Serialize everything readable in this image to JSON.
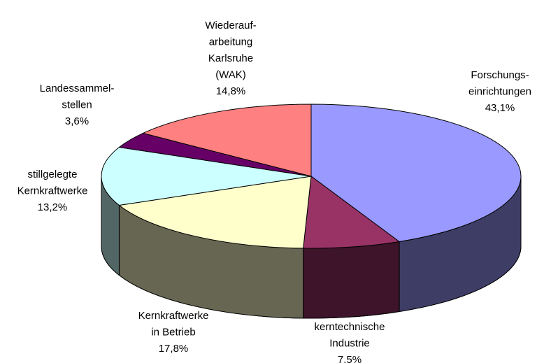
{
  "chart_data": {
    "type": "pie3d",
    "categories": [
      [
        "Forschungs-",
        "einrichtungen"
      ],
      [
        "kerntechnische",
        "Industrie"
      ],
      [
        "Kernkraftwerke",
        "in Betrieb"
      ],
      [
        "stillgelegte",
        "Kernkraftwerke"
      ],
      [
        "Landessammel-",
        "stellen"
      ],
      [
        "Wiederauf-",
        "arbeitung",
        "Karlsruhe",
        "(WAK)"
      ]
    ],
    "values": [
      43.1,
      7.5,
      17.8,
      13.2,
      3.6,
      14.8
    ],
    "value_labels": [
      "43,1%",
      "7,5%",
      "17,8%",
      "13,2%",
      "3,6%",
      "14,8%"
    ],
    "colors": [
      "#9999ff",
      "#993366",
      "#ffffcc",
      "#ccffff",
      "#660066",
      "#ff8080"
    ]
  }
}
